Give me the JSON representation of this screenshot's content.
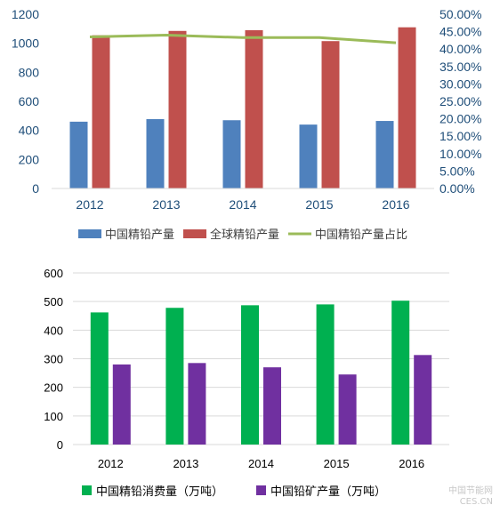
{
  "chart_data": [
    {
      "type": "bar",
      "categories": [
        "2012",
        "2013",
        "2014",
        "2015",
        "2016"
      ],
      "series": [
        {
          "name": "中国精铅产量",
          "values": [
            460,
            478,
            470,
            440,
            465
          ],
          "color": "#4f81bd",
          "axis": "left"
        },
        {
          "name": "全球精铅产量",
          "values": [
            1055,
            1085,
            1090,
            1015,
            1110
          ],
          "color": "#c0504d",
          "axis": "left"
        },
        {
          "name": "中国精铅产量占比",
          "type": "line",
          "values": [
            0.435,
            0.44,
            0.433,
            0.433,
            0.418
          ],
          "color": "#9bbb59",
          "axis": "right"
        }
      ],
      "ylim": [
        0,
        1200
      ],
      "yticks": [
        "0",
        "200",
        "400",
        "600",
        "800",
        "1000",
        "1200"
      ],
      "y2lim": [
        0,
        0.5
      ],
      "y2ticks": [
        "0.00%",
        "5.00%",
        "10.00%",
        "15.00%",
        "20.00%",
        "25.00%",
        "30.00%",
        "35.00%",
        "40.00%",
        "45.00%",
        "50.00%"
      ],
      "grid": false,
      "legend": "bottom"
    },
    {
      "type": "bar",
      "categories": [
        "2012",
        "2013",
        "2014",
        "2015",
        "2016"
      ],
      "series": [
        {
          "name": "中国精铅消费量（万吨）",
          "values": [
            462,
            478,
            487,
            490,
            503
          ],
          "color": "#00b050"
        },
        {
          "name": "中国铅矿产量（万吨）",
          "values": [
            280,
            285,
            270,
            245,
            313
          ],
          "color": "#7030a0"
        }
      ],
      "ylim": [
        0,
        600
      ],
      "yticks": [
        "0",
        "100",
        "200",
        "300",
        "400",
        "500",
        "600"
      ],
      "grid": true,
      "legend": "bottom"
    }
  ],
  "watermark": {
    "line1": "中国节能网",
    "line2": "CES.CN"
  }
}
